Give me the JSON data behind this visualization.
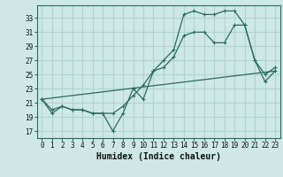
{
  "xlabel": "Humidex (Indice chaleur)",
  "bg_color": "#cde8e5",
  "line_color": "#2d6b5e",
  "grid_color": "#b0d5d0",
  "xlim": [
    -0.5,
    23.5
  ],
  "ylim": [
    16.0,
    34.8
  ],
  "xticks": [
    0,
    1,
    2,
    3,
    4,
    5,
    6,
    7,
    8,
    9,
    10,
    11,
    12,
    13,
    14,
    15,
    16,
    17,
    18,
    19,
    20,
    21,
    22,
    23
  ],
  "yticks": [
    17,
    19,
    21,
    23,
    25,
    27,
    29,
    31,
    33
  ],
  "line1_x": [
    0,
    1,
    2,
    3,
    4,
    5,
    6,
    7,
    8,
    9,
    10,
    11,
    12,
    13,
    14,
    15,
    16,
    17,
    18,
    19,
    20,
    21,
    22,
    23
  ],
  "line1_y": [
    21.5,
    19.5,
    20.5,
    20.0,
    20.0,
    19.5,
    19.5,
    17.0,
    19.5,
    23.0,
    21.5,
    25.5,
    26.0,
    27.5,
    30.5,
    31.0,
    31.0,
    29.5,
    29.5,
    32.0,
    32.0,
    27.0,
    24.0,
    25.5
  ],
  "line2_x": [
    0,
    1,
    2,
    3,
    4,
    5,
    6,
    7,
    8,
    9,
    10,
    11,
    12,
    13,
    14,
    15,
    16,
    17,
    18,
    19,
    20,
    21,
    22,
    23
  ],
  "line2_y": [
    21.5,
    20.0,
    20.5,
    20.0,
    20.0,
    19.5,
    19.5,
    19.5,
    20.5,
    22.0,
    23.5,
    25.5,
    27.0,
    28.5,
    33.5,
    34.0,
    33.5,
    33.5,
    34.0,
    34.0,
    32.0,
    27.0,
    25.0,
    26.0
  ],
  "line3_x": [
    0,
    23
  ],
  "line3_y": [
    21.5,
    25.5
  ],
  "fontsize_tick": 5.5,
  "fontsize_label": 7
}
